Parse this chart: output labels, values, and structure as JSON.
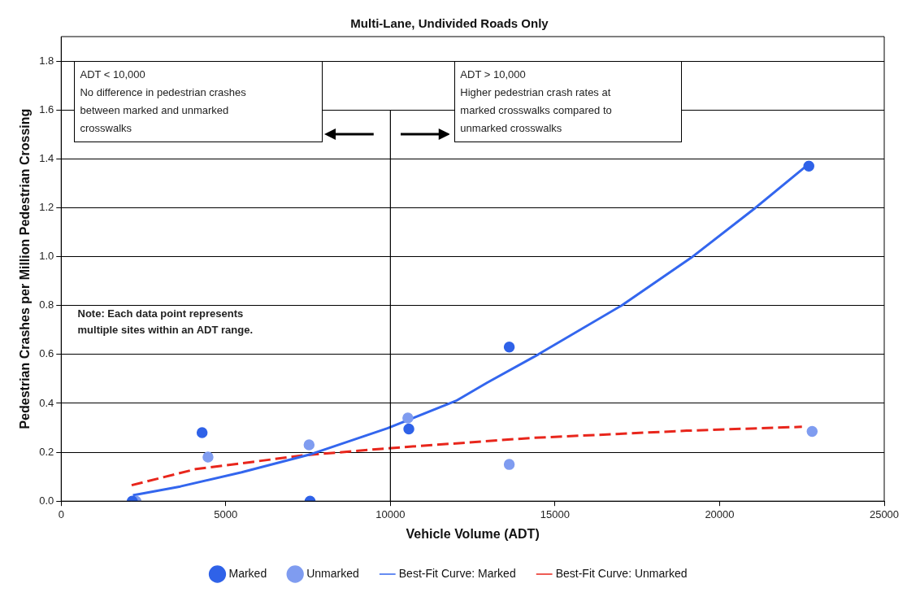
{
  "chart_data": {
    "type": "scatter",
    "title": "Multi-Lane, Undivided Roads Only",
    "xlabel": "Vehicle Volume (ADT)",
    "ylabel": "Pedestrian Crashes per Million Pedestrian Crossing",
    "xlim": [
      0,
      25000
    ],
    "xticks": [
      0,
      5000,
      10000,
      15000,
      20000,
      25000
    ],
    "ylim": [
      0,
      1.9
    ],
    "yticks": [
      {
        "value": 0,
        "label": "0.0"
      },
      {
        "value": 0.2,
        "label": "0.2"
      },
      {
        "value": 0.4,
        "label": "0.4"
      },
      {
        "value": 0.6,
        "label": "0.6"
      },
      {
        "value": 0.8,
        "label": "0.8"
      },
      {
        "value": 1,
        "label": "1.0"
      },
      {
        "value": 1.2,
        "label": "1.2"
      },
      {
        "value": 1.4,
        "label": "1.4"
      },
      {
        "value": 1.6,
        "label": "1.6"
      },
      {
        "value": 1.8,
        "label": "1.8"
      }
    ],
    "grid": "y",
    "legend": "bottom",
    "series": [
      {
        "name": "Marked",
        "color": "#2f62e8",
        "marker": "circle",
        "x": [
          2160,
          4280,
          7560,
          10560,
          13610,
          22710
        ],
        "values": [
          0,
          0.28,
          0,
          0.295,
          0.63,
          1.37
        ]
      },
      {
        "name": "Unmarked",
        "color": "#7f9cf0",
        "marker": "circle",
        "x": [
          2270,
          4460,
          7530,
          10530,
          13610,
          22810
        ],
        "values": [
          0,
          0.18,
          0.23,
          0.34,
          0.15,
          0.285
        ]
      },
      {
        "name": "Best-Fit Curve: Marked",
        "type": "line",
        "color": "#3366ee",
        "marker": "none",
        "line_style": "solid",
        "x": [
          2180,
          3620,
          5480,
          7610,
          9910,
          11990,
          12930,
          14490,
          17020,
          19130,
          21090,
          22760
        ],
        "values": [
          0.024,
          0.06,
          0.118,
          0.193,
          0.298,
          0.41,
          0.484,
          0.6,
          0.8,
          0.995,
          1.2,
          1.385
        ]
      },
      {
        "name": "Best-Fit Curve: Unmarked",
        "type": "line",
        "color": "#e8261c",
        "marker": "none",
        "line_style": "dashed",
        "x": [
          2140,
          4090,
          7350,
          9910,
          14230,
          19000,
          22500
        ],
        "values": [
          0.065,
          0.131,
          0.187,
          0.216,
          0.258,
          0.288,
          0.304
        ]
      }
    ],
    "ref_lines": [
      {
        "axis": "x",
        "value": 10000,
        "color": "#000000"
      }
    ],
    "annotations": [
      "ADT < 10,000\nNo difference in pedestrian crashes\nbetween marked and unmarked\ncrosswalks",
      "ADT > 10,000\nHigher pedestrian crash rates at\nmarked crosswalks compared to\nunmarked crosswalks",
      "Note:  Each data point represents\nmultiple sites within an ADT range."
    ]
  }
}
